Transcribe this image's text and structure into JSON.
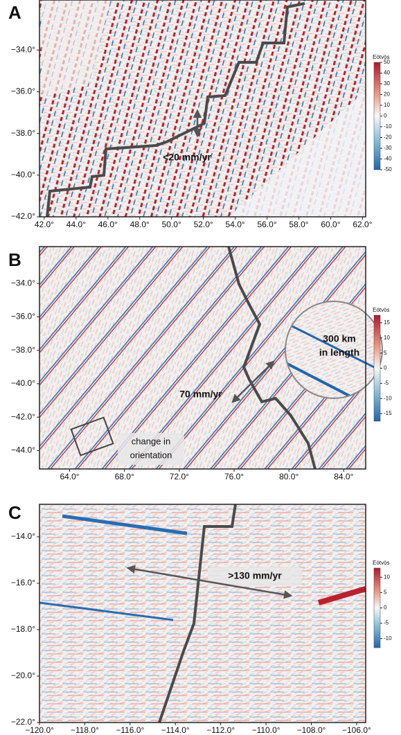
{
  "chart_data": [
    {
      "type": "map",
      "panel_label": "A",
      "xlim": [
        41.7,
        62.2
      ],
      "ylim": [
        -42,
        -31.6
      ],
      "xticks": [
        {
          "value": 42,
          "label": "42.0°"
        },
        {
          "value": 44,
          "label": "44.0°"
        },
        {
          "value": 46,
          "label": "46.0°"
        },
        {
          "value": 48,
          "label": "48.0°"
        },
        {
          "value": 50,
          "label": "50.0°"
        },
        {
          "value": 52,
          "label": "52.0°"
        },
        {
          "value": 54,
          "label": "54.0°"
        },
        {
          "value": 56,
          "label": "56.0°"
        },
        {
          "value": 58,
          "label": "58.0°"
        },
        {
          "value": 60,
          "label": "60.0°"
        },
        {
          "value": 62,
          "label": "62.0°"
        }
      ],
      "yticks": [
        {
          "value": -42,
          "label": "−42.0°"
        },
        {
          "value": -40,
          "label": "−40.0°"
        },
        {
          "value": -38,
          "label": "−38.0°"
        },
        {
          "value": -36,
          "label": "−36.0°"
        },
        {
          "value": -34,
          "label": "−34.0°"
        }
      ],
      "annotations": [
        {
          "lines": [
            "<20 mm/yr"
          ]
        }
      ],
      "colorbar": {
        "title": "Eötvös",
        "lim": [
          -50,
          50
        ],
        "ticks": [
          -50,
          -40,
          -30,
          -20,
          -10,
          0,
          10,
          20,
          30,
          40,
          50
        ]
      }
    },
    {
      "type": "map",
      "panel_label": "B",
      "xlim": [
        61.8,
        85.6
      ],
      "ylim": [
        -45.1,
        -31.8
      ],
      "xticks": [
        {
          "value": 64,
          "label": "64.0°"
        },
        {
          "value": 68,
          "label": "68.0°"
        },
        {
          "value": 72,
          "label": "72.0°"
        },
        {
          "value": 76,
          "label": "76.0°"
        },
        {
          "value": 80,
          "label": "80.0°"
        },
        {
          "value": 84,
          "label": "84.0°"
        }
      ],
      "yticks": [
        {
          "value": -44,
          "label": "−44.0°"
        },
        {
          "value": -42,
          "label": "−42.0°"
        },
        {
          "value": -40,
          "label": "−40.0°"
        },
        {
          "value": -38,
          "label": "−38.0°"
        },
        {
          "value": -36,
          "label": "−36.0°"
        },
        {
          "value": -34,
          "label": "−34.0°"
        }
      ],
      "annotations": [
        {
          "lines": [
            "70 mm/yr"
          ]
        },
        {
          "lines": [
            "300 km",
            "in length"
          ]
        },
        {
          "lines": [
            "change in",
            "orientation"
          ]
        }
      ],
      "colorbar": {
        "title": "Eötvös",
        "lim": [
          -17.5,
          17.5
        ],
        "ticks": [
          -15,
          -10,
          -5,
          0,
          5,
          10,
          15
        ]
      }
    },
    {
      "type": "map",
      "panel_label": "C",
      "xlim": [
        -120,
        -105.6
      ],
      "ylim": [
        -22,
        -12.6
      ],
      "xticks": [
        {
          "value": -120,
          "label": "−120.0°"
        },
        {
          "value": -118,
          "label": "−118.0°"
        },
        {
          "value": -116,
          "label": "−116.0°"
        },
        {
          "value": -114,
          "label": "−114.0°"
        },
        {
          "value": -112,
          "label": "−112.0°"
        },
        {
          "value": -110,
          "label": "−110.0°"
        },
        {
          "value": -108,
          "label": "−108.0°"
        },
        {
          "value": -106,
          "label": "−106.0°"
        }
      ],
      "yticks": [
        {
          "value": -22,
          "label": "−22.0°"
        },
        {
          "value": -20,
          "label": "−20.0°"
        },
        {
          "value": -18,
          "label": "−18.0°"
        },
        {
          "value": -16,
          "label": "−16.0°"
        },
        {
          "value": -14,
          "label": "−14.0°"
        }
      ],
      "annotations": [
        {
          "lines": [
            ">130 mm/yr"
          ]
        }
      ],
      "colorbar": {
        "title": "Eötvös",
        "lim": [
          -13,
          13
        ],
        "ticks": [
          -10,
          -5,
          0,
          5,
          10
        ]
      }
    }
  ]
}
